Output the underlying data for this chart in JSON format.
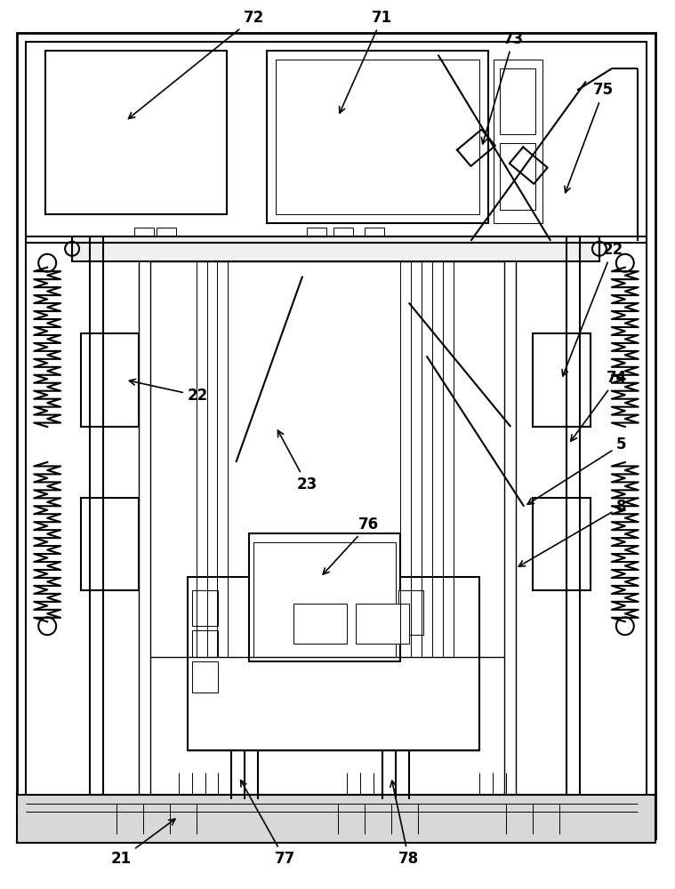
{
  "bg_color": "#ffffff",
  "lw_outer": 2.0,
  "lw_main": 1.5,
  "lw_med": 1.0,
  "lw_thin": 0.7
}
